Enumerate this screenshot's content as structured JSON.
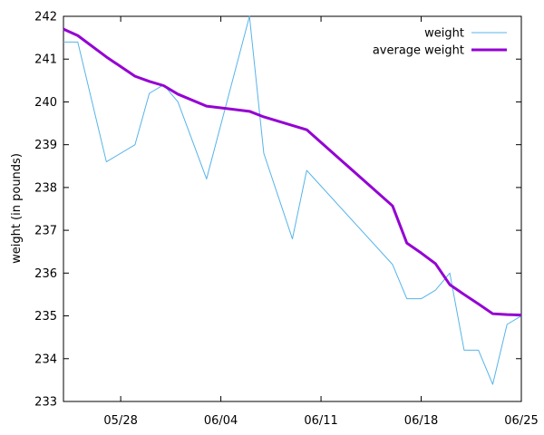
{
  "chart_data": {
    "type": "line",
    "title": "",
    "xlabel": "",
    "ylabel": "weight (in pounds)",
    "year": "2023",
    "xlim": [
      "2023-05-24",
      "2023-06-25"
    ],
    "ylim": [
      233,
      242
    ],
    "x_ticks": [
      "2023-05-28",
      "2023-06-04",
      "2023-06-11",
      "2023-06-18",
      "2023-06-25"
    ],
    "x_tick_labels": [
      "05/28",
      "06/04",
      "06/11",
      "06/18",
      "06/25"
    ],
    "y_ticks": [
      233,
      234,
      235,
      236,
      237,
      238,
      239,
      240,
      241,
      242
    ],
    "legend_position": "top-right",
    "series": [
      {
        "name": "weight",
        "color": "#56b4e9",
        "points": [
          [
            "2023-05-24",
            241.4
          ],
          [
            "2023-05-25",
            241.4
          ],
          [
            "2023-05-27",
            238.6
          ],
          [
            "2023-05-29",
            239.0
          ],
          [
            "2023-05-30",
            240.2
          ],
          [
            "2023-05-31",
            240.4
          ],
          [
            "2023-06-01",
            240.0
          ],
          [
            "2023-06-03",
            238.2
          ],
          [
            "2023-06-06",
            242.0
          ],
          [
            "2023-06-07",
            238.8
          ],
          [
            "2023-06-09",
            236.8
          ],
          [
            "2023-06-10",
            238.4
          ],
          [
            "2023-06-16",
            236.2
          ],
          [
            "2023-06-17",
            235.4
          ],
          [
            "2023-06-18",
            235.4
          ],
          [
            "2023-06-19",
            235.6
          ],
          [
            "2023-06-20",
            236.0
          ],
          [
            "2023-06-21",
            234.2
          ],
          [
            "2023-06-22",
            234.2
          ],
          [
            "2023-06-23",
            233.4
          ],
          [
            "2023-06-24",
            234.8
          ],
          [
            "2023-06-25",
            235.0
          ]
        ]
      },
      {
        "name": "average weight",
        "color": "#9400d3",
        "points": [
          [
            "2023-05-24",
            241.7
          ],
          [
            "2023-05-25",
            241.55
          ],
          [
            "2023-05-27",
            241.05
          ],
          [
            "2023-05-29",
            240.6
          ],
          [
            "2023-05-30",
            240.48
          ],
          [
            "2023-05-31",
            240.38
          ],
          [
            "2023-06-01",
            240.18
          ],
          [
            "2023-06-03",
            239.9
          ],
          [
            "2023-06-06",
            239.78
          ],
          [
            "2023-06-07",
            239.65
          ],
          [
            "2023-06-09",
            239.45
          ],
          [
            "2023-06-10",
            239.35
          ],
          [
            "2023-06-16",
            237.57
          ],
          [
            "2023-06-17",
            236.7
          ],
          [
            "2023-06-18",
            236.47
          ],
          [
            "2023-06-19",
            236.22
          ],
          [
            "2023-06-20",
            235.73
          ],
          [
            "2023-06-21",
            235.5
          ],
          [
            "2023-06-22",
            235.28
          ],
          [
            "2023-06-23",
            235.05
          ],
          [
            "2023-06-24",
            235.03
          ],
          [
            "2023-06-25",
            235.02
          ]
        ]
      }
    ]
  }
}
